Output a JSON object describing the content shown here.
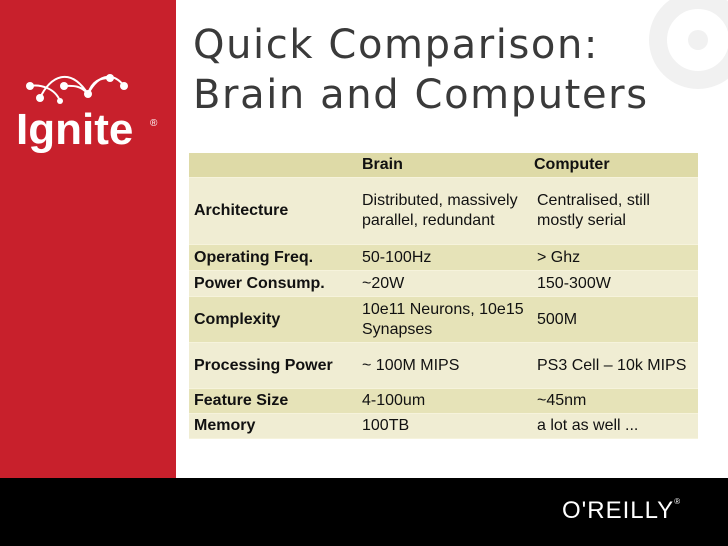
{
  "slide": {
    "title_line1": "Quick Comparison:",
    "title_line2": "Brain and Computers"
  },
  "logo": {
    "text": "Ignite",
    "registered": "®"
  },
  "table": {
    "headers": [
      "",
      "Brain",
      "Computer"
    ],
    "rows": [
      {
        "label": "Architecture",
        "brain": "Distributed, massively parallel, redundant",
        "computer": "Centralised, still mostly serial"
      },
      {
        "label": "Operating Freq.",
        "brain": "50-100Hz",
        "computer": "> Ghz"
      },
      {
        "label": "Power Consump.",
        "brain": "~20W",
        "computer": "150-300W"
      },
      {
        "label": "Complexity",
        "brain": "10e11 Neurons, 10e15 Synapses",
        "computer": "500M"
      },
      {
        "label": "Processing Power",
        "brain": "~ 100M MIPS",
        "computer": "PS3 Cell – 10k MIPS"
      },
      {
        "label": "Feature Size",
        "brain": "4-100um",
        "computer": "~45nm"
      },
      {
        "label": "Memory",
        "brain": "100TB",
        "computer": "a lot as well ..."
      }
    ]
  },
  "footer": {
    "brand": "O'REILLY",
    "trademark": "®"
  },
  "colors": {
    "sidebar": "#c8202c",
    "header_row": "#dedaa7",
    "row_light": "#f0edd3",
    "row_dark": "#e6e3b8",
    "footer": "#000000"
  }
}
